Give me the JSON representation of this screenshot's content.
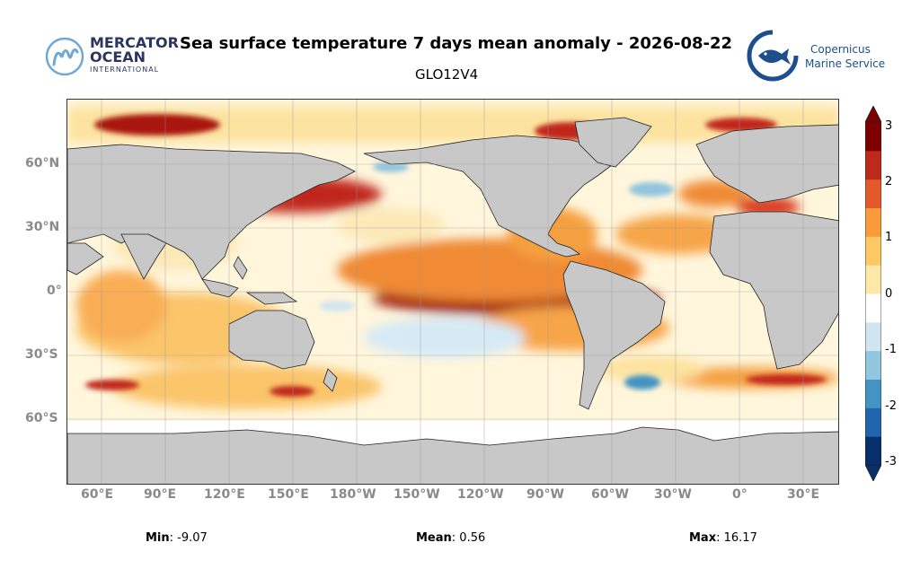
{
  "header": {
    "title": "Sea surface temperature 7 days mean anomaly - 2026-08-22",
    "subtitle": "GLO12V4"
  },
  "logos": {
    "left": {
      "line1": "MERCATOR",
      "line2": "OCEAN",
      "line3": "INTERNATIONAL"
    },
    "right": {
      "line1": "Copernicus",
      "line2": "Marine Service"
    }
  },
  "map": {
    "lat_labels": [
      "60°N",
      "30°N",
      "0°",
      "30°S",
      "60°S"
    ],
    "lon_labels": [
      "60°E",
      "90°E",
      "120°E",
      "150°E",
      "180°W",
      "150°W",
      "120°W",
      "90°W",
      "60°W",
      "30°W",
      "0°",
      "30°E"
    ],
    "land_color": "#c8c8c8",
    "grid": true
  },
  "colorbar": {
    "labels": [
      "3",
      "2",
      "1",
      "0",
      "-1",
      "-2",
      "-3"
    ],
    "range": [
      -3,
      3
    ],
    "colors": [
      "#08306b",
      "#2166ac",
      "#4393c3",
      "#92c5de",
      "#d1e5f0",
      "#ffffff",
      "#fee8a8",
      "#fdc863",
      "#f99a3b",
      "#e3592a",
      "#bd2a1c",
      "#7f0000"
    ]
  },
  "stats": {
    "min_label": "Min",
    "min_value": ": -9.07",
    "mean_label": "Mean",
    "mean_value": ": 0.56",
    "max_label": "Max",
    "max_value": ": 16.17"
  }
}
